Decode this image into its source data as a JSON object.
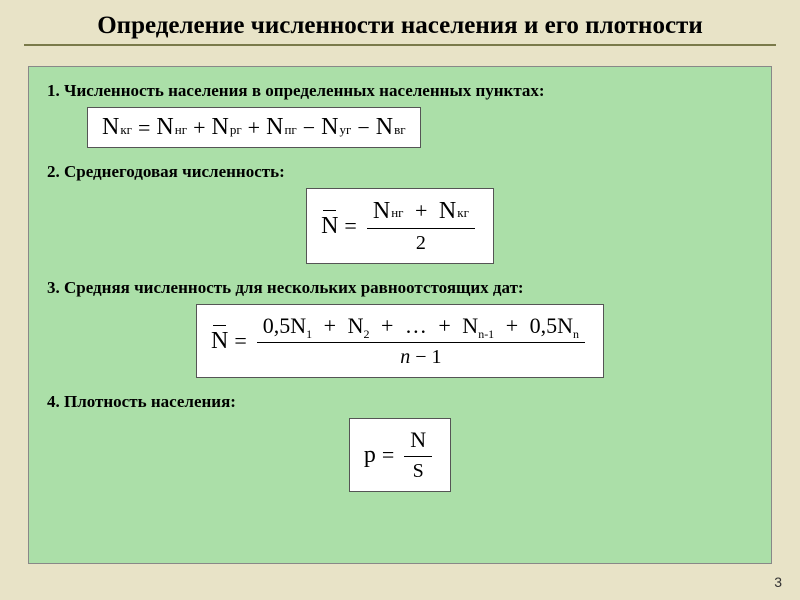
{
  "page": {
    "title": "Определение численности населения и его плотности",
    "page_number": "3",
    "background_color": "#e8e3c7",
    "panel_color": "#abdfa8",
    "underline_color": "#7a7a4a"
  },
  "items": [
    {
      "label": "1. Численность населения в определенных населенных пунктах:",
      "formula": {
        "type": "linear",
        "lhs": {
          "var": "N",
          "sub": "кг"
        },
        "rhs": [
          {
            "op": "",
            "var": "N",
            "sub": "нг"
          },
          {
            "op": "+",
            "var": "N",
            "sub": "рг"
          },
          {
            "op": "+",
            "var": "N",
            "sub": "пг"
          },
          {
            "op": "−",
            "var": "N",
            "sub": "уг"
          },
          {
            "op": "−",
            "var": "N",
            "sub": "вг"
          }
        ]
      }
    },
    {
      "label": "2. Среднегодовая численность:",
      "formula": {
        "type": "fraction",
        "lhs_bar": true,
        "lhs": "N",
        "numerator_terms": [
          {
            "var": "N",
            "sub": "нг"
          },
          {
            "op": "+",
            "var": "N",
            "sub": "кг"
          }
        ],
        "denominator": "2"
      }
    },
    {
      "label": "3. Средняя численность для нескольких равноотстоящих дат:",
      "formula": {
        "type": "fraction",
        "lhs_bar": true,
        "lhs": "N",
        "numerator_raw": "0,5N₁ + N₂ + … + Nₙ₋₁ + 0,5Nₙ",
        "numerator_parts": [
          {
            "coef": "0,5",
            "var": "N",
            "sub": "1"
          },
          {
            "op": "+",
            "var": "N",
            "sub": "2"
          },
          {
            "op": "+",
            "text": "…"
          },
          {
            "op": "+",
            "var": "N",
            "sub": "n-1"
          },
          {
            "op": "+",
            "coef": "0,5",
            "var": "N",
            "sub": "n"
          }
        ],
        "denominator_expr": {
          "var": "n",
          "op": "−",
          "val": "1"
        }
      }
    },
    {
      "label": "4. Плотность населения:",
      "formula": {
        "type": "fraction",
        "lhs": "p",
        "numerator_var": "N",
        "denominator": "S"
      }
    }
  ]
}
